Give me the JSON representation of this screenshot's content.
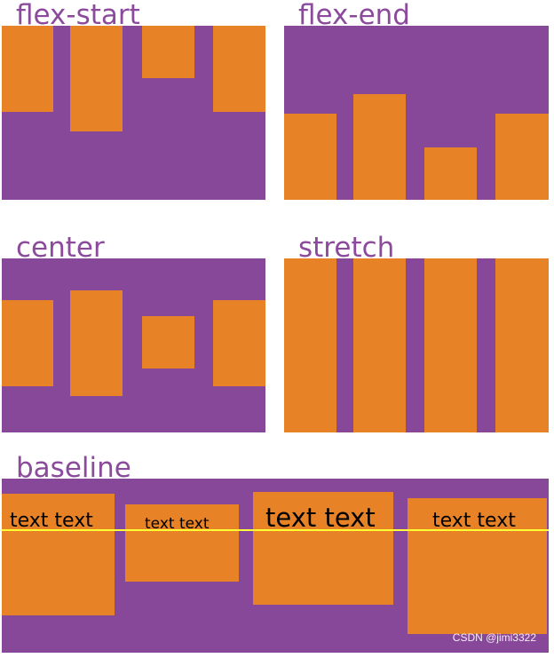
{
  "panels": {
    "flex_start": {
      "label": "flex-start"
    },
    "flex_end": {
      "label": "flex-end"
    },
    "center": {
      "label": "center"
    },
    "stretch": {
      "label": "stretch"
    },
    "baseline": {
      "label": "baseline",
      "items": [
        "text text",
        "text text",
        "text text",
        "text text"
      ]
    }
  },
  "colors": {
    "container": "#87489a",
    "item": "#e88226",
    "label": "#8b4a9c",
    "baseline_line": "#ffff33"
  },
  "watermark": "CSDN @jimi3322"
}
